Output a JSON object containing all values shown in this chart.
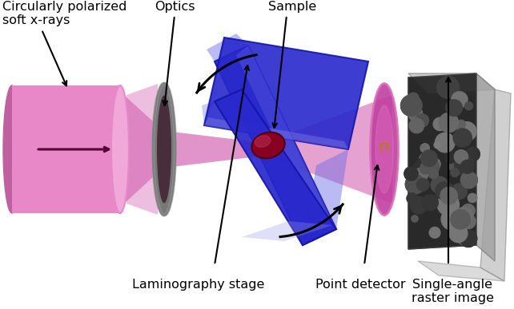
{
  "bg_color": "#ffffff",
  "labels": {
    "xrays": "Circularly polarized\nsoft x-rays",
    "optics": "Optics",
    "sample": "Sample",
    "laminography": "Laminography stage",
    "point_detector": "Point detector",
    "raster": "Single-angle\nraster image"
  },
  "colors": {
    "pink_body": "#e888c8",
    "pink_front": "#f0a8d8",
    "pink_back": "#c060a0",
    "pink_cone": "#d870b8",
    "pink_cone_dark": "#a03880",
    "disk_gray": "#787878",
    "disk_light": "#a8a8a8",
    "disk_dark": "#484848",
    "blue_main": "#2828cc",
    "blue_light": "#6868e8",
    "blue_lightest": "#9898f0",
    "red_sample": "#880022",
    "red_light": "#bb3355",
    "pink_detector": "#c040a0",
    "pink_detector_light": "#e070c0",
    "gray_image_bg": "#b8b8b8",
    "gray_image_side": "#989898",
    "dark_image": "#282828"
  },
  "figsize": [
    6.42,
    3.87
  ],
  "dpi": 100
}
